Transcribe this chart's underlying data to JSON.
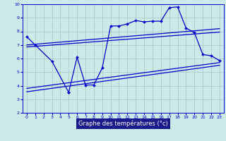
{
  "xlabel": "Graphe des températures (°c)",
  "background_color": "#cceaea",
  "plot_bg_color": "#cceaea",
  "line_color": "#0000cc",
  "grid_color": "#aacccc",
  "xlabel_bg": "#1a1a8c",
  "xlabel_fg": "#ffffff",
  "xlim": [
    -0.5,
    23.5
  ],
  "ylim": [
    2,
    10
  ],
  "xticks": [
    0,
    1,
    2,
    3,
    4,
    5,
    6,
    7,
    8,
    9,
    10,
    11,
    12,
    13,
    14,
    15,
    16,
    17,
    18,
    19,
    20,
    21,
    22,
    23
  ],
  "yticks": [
    2,
    3,
    4,
    5,
    6,
    7,
    8,
    9,
    10
  ],
  "actual": {
    "x": [
      0,
      1,
      3,
      5,
      5,
      6,
      7,
      8,
      9,
      10,
      11,
      12,
      13,
      14,
      15,
      16,
      17,
      18,
      19,
      20,
      21,
      22,
      23
    ],
    "y": [
      7.6,
      7.0,
      5.8,
      3.5,
      3.5,
      6.1,
      4.05,
      4.05,
      5.3,
      8.4,
      8.4,
      8.55,
      8.8,
      8.7,
      8.75,
      8.75,
      9.75,
      9.8,
      8.25,
      7.9,
      6.3,
      6.2,
      5.85
    ]
  },
  "upper1": {
    "x": [
      0,
      23
    ],
    "y": [
      7.0,
      8.2
    ]
  },
  "upper2": {
    "x": [
      0,
      23
    ],
    "y": [
      6.85,
      7.95
    ]
  },
  "lower1": {
    "x": [
      0,
      23
    ],
    "y": [
      3.8,
      5.7
    ]
  },
  "lower2": {
    "x": [
      0,
      23
    ],
    "y": [
      3.55,
      5.5
    ]
  }
}
